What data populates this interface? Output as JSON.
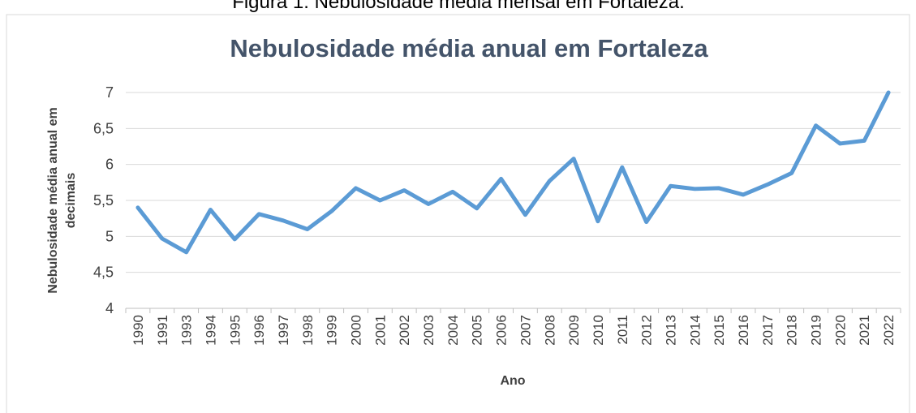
{
  "caption": "Figura 1: Nebulosidade média mensal em Fortaleza.",
  "chart_data": {
    "type": "line",
    "title": "Nebulosidade média anual em Fortaleza",
    "y_label": [
      "Nebulosidade média anual em",
      "decimais"
    ],
    "x_label": "Ano",
    "categories": [
      "1990",
      "1991",
      "1993",
      "1994",
      "1995",
      "1996",
      "1997",
      "1998",
      "1999",
      "2000",
      "2001",
      "2002",
      "2003",
      "2004",
      "2005",
      "2006",
      "2007",
      "2008",
      "2009",
      "2010",
      "2011",
      "2012",
      "2013",
      "2014",
      "2015",
      "2016",
      "2017",
      "2018",
      "2019",
      "2020",
      "2021",
      "2022"
    ],
    "series": [
      {
        "color": "#5b9bd5",
        "values": [
          5.4,
          4.97,
          4.78,
          5.37,
          4.96,
          5.31,
          5.22,
          5.1,
          5.35,
          5.67,
          5.5,
          5.64,
          5.45,
          5.62,
          5.39,
          5.8,
          5.3,
          5.77,
          6.08,
          5.21,
          5.96,
          5.2,
          5.7,
          5.66,
          5.67,
          5.58,
          5.72,
          5.88,
          6.54,
          6.29,
          6.33,
          7.0
        ]
      }
    ],
    "ylim": [
      4,
      7
    ],
    "yticks": [
      4,
      {
        "value": 4.5,
        "label": "4,5"
      },
      5,
      {
        "value": 5.5,
        "label": "5,5"
      },
      6,
      {
        "value": 6.5,
        "label": "6,5"
      },
      7
    ],
    "grid": true
  }
}
